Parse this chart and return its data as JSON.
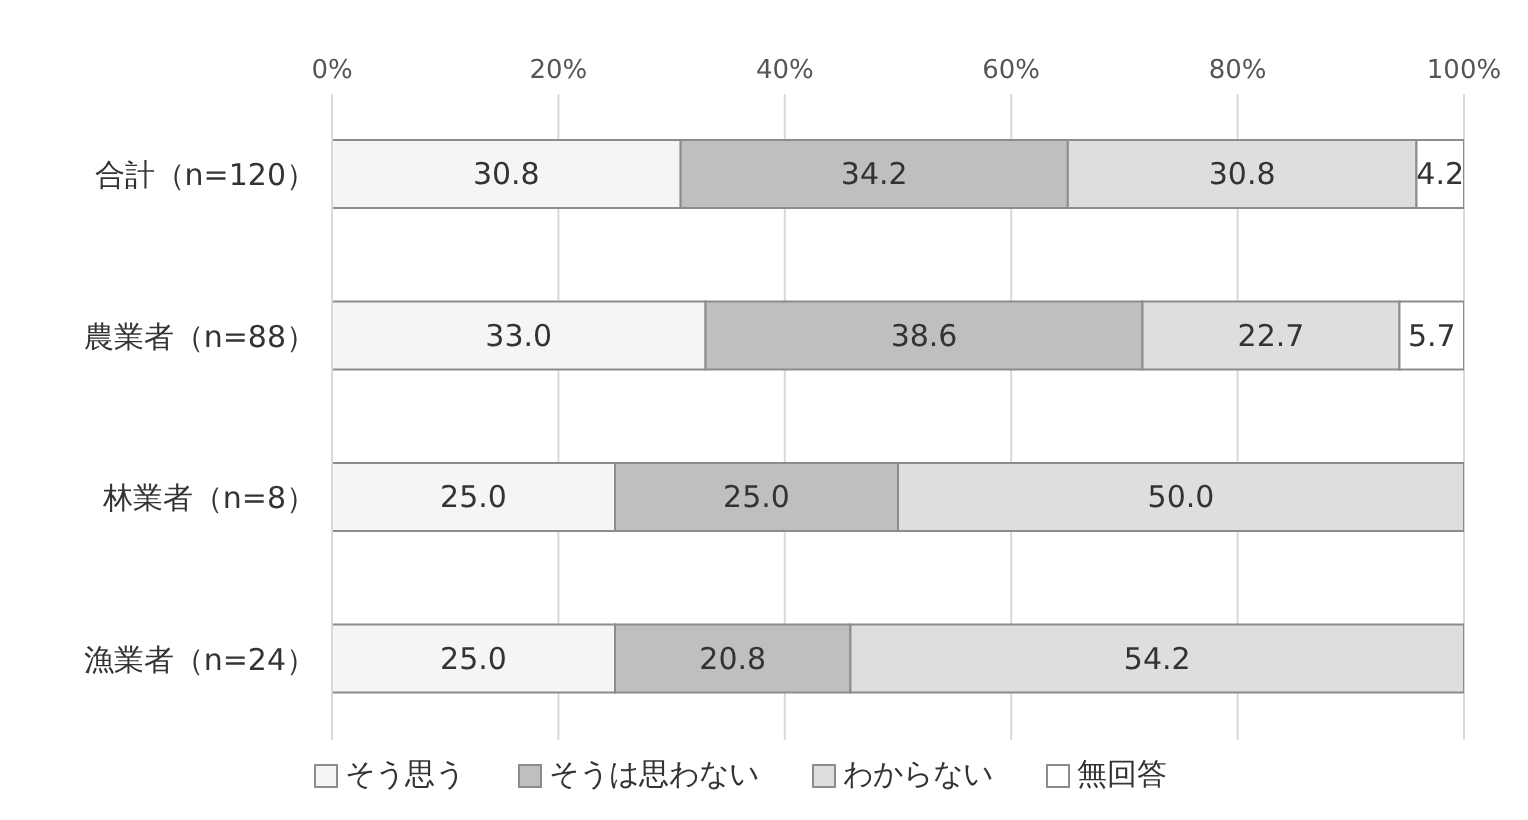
{
  "chart_data": {
    "type": "bar",
    "orientation": "horizontal",
    "stacked": true,
    "categories": [
      "合計（n=120）",
      "農業者（n=88）",
      "林業者（n=8）",
      "漁業者（n=24）"
    ],
    "series": [
      {
        "name": "そう思う",
        "color": "#f5f5f5",
        "values": [
          30.8,
          33.0,
          25.0,
          25.0
        ],
        "value_labels": [
          "30.8",
          "33.0",
          "25.0",
          "25.0"
        ]
      },
      {
        "name": "そうは思わない",
        "color": "#bfbfbf",
        "values": [
          34.2,
          38.6,
          25.0,
          20.8
        ],
        "value_labels": [
          "34.2",
          "38.6",
          "25.0",
          "20.8"
        ]
      },
      {
        "name": "わからない",
        "color": "#dedede",
        "values": [
          30.8,
          22.7,
          50.0,
          54.2
        ],
        "value_labels": [
          "30.8",
          "22.7",
          "50.0",
          "54.2"
        ]
      },
      {
        "name": "無回答",
        "color": "#ffffff",
        "values": [
          4.2,
          5.7,
          null,
          null
        ],
        "value_labels": [
          "4.2",
          "5.7",
          null,
          null
        ]
      }
    ],
    "xlim": [
      0,
      100
    ],
    "xticks": [
      {
        "value": 0,
        "label": "0%"
      },
      {
        "value": 20,
        "label": "20%"
      },
      {
        "value": 40,
        "label": "40%"
      },
      {
        "value": 60,
        "label": "60%"
      },
      {
        "value": 80,
        "label": "80%"
      },
      {
        "value": 100,
        "label": "100%"
      }
    ],
    "grid": "x",
    "legend": "bottom"
  }
}
